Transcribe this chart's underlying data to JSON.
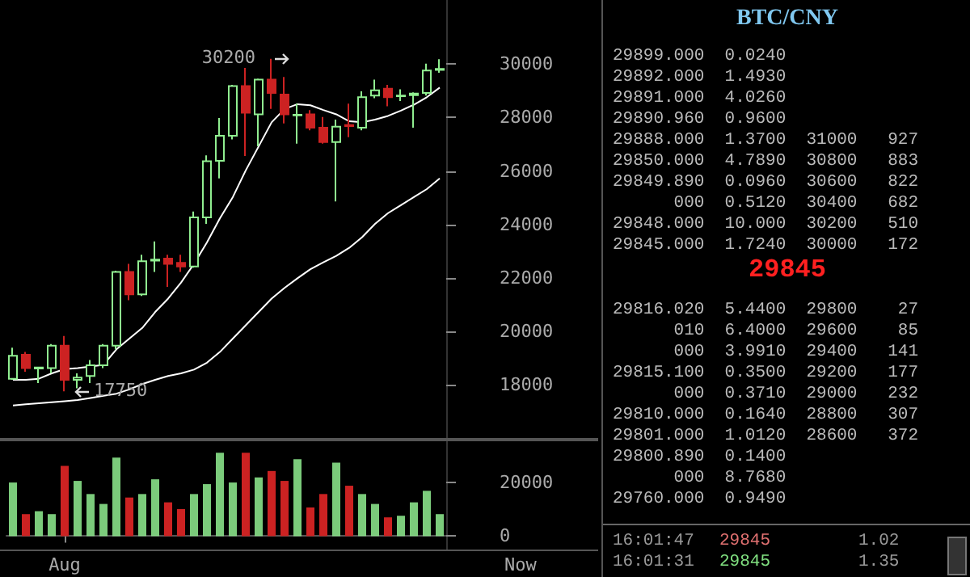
{
  "chart_data": [
    {
      "type": "candlestick",
      "categories": [
        null,
        null,
        null,
        null,
        null,
        null,
        null,
        null,
        null,
        null,
        null,
        null,
        null,
        null,
        null,
        null,
        null,
        null,
        null,
        null,
        null,
        null,
        null,
        null,
        null,
        null,
        null,
        null,
        null,
        null,
        null,
        null,
        null,
        null
      ],
      "ohlc": [
        [
          18220,
          19380,
          18180,
          19080
        ],
        [
          19120,
          19220,
          18480,
          18620
        ],
        [
          18600,
          18660,
          18060,
          18640
        ],
        [
          18620,
          19520,
          18420,
          19460
        ],
        [
          19460,
          19820,
          17750,
          18180
        ],
        [
          18180,
          18420,
          17860,
          18260
        ],
        [
          18320,
          18920,
          18060,
          18720
        ],
        [
          18720,
          19520,
          18620,
          19460
        ],
        [
          19460,
          22260,
          19320,
          22220
        ],
        [
          22220,
          22520,
          21160,
          21380
        ],
        [
          21380,
          22860,
          21320,
          22620
        ],
        [
          22640,
          23360,
          22220,
          22680
        ],
        [
          22720,
          22860,
          21660,
          22520
        ],
        [
          22560,
          22860,
          22220,
          22420
        ],
        [
          22420,
          24480,
          22380,
          24260
        ],
        [
          24260,
          26580,
          24020,
          26360
        ],
        [
          26380,
          27980,
          25720,
          27320
        ],
        [
          27320,
          29220,
          27180,
          29180
        ],
        [
          29180,
          29860,
          26560,
          28180
        ],
        [
          28120,
          29460,
          26920,
          29420
        ],
        [
          29420,
          30200,
          28320,
          28920
        ],
        [
          28860,
          29520,
          27780,
          28120
        ],
        [
          28080,
          28520,
          27020,
          28100
        ],
        [
          28120,
          28280,
          27520,
          27620
        ],
        [
          27620,
          28020,
          27020,
          27080
        ],
        [
          27080,
          27920,
          24860,
          27660
        ],
        [
          27720,
          28520,
          27260,
          27680
        ],
        [
          27620,
          28980,
          27520,
          28760
        ],
        [
          28820,
          29420,
          28720,
          29020
        ],
        [
          29080,
          29220,
          28420,
          28760
        ],
        [
          28800,
          29060,
          28620,
          28820
        ],
        [
          28840,
          28940,
          27620,
          28900
        ],
        [
          28920,
          30020,
          28820,
          29760
        ],
        [
          29780,
          30180,
          29680,
          29820
        ]
      ],
      "colors": [
        "#90ee90",
        "#cc2222",
        "#90ee90",
        "#90ee90",
        "#cc2222",
        "#90ee90",
        "#90ee90",
        "#90ee90",
        "#90ee90",
        "#cc2222",
        "#90ee90",
        "#90ee90",
        "#cc2222",
        "#cc2222",
        "#90ee90",
        "#90ee90",
        "#90ee90",
        "#90ee90",
        "#cc2222",
        "#90ee90",
        "#cc2222",
        "#cc2222",
        "#90ee90",
        "#cc2222",
        "#cc2222",
        "#90ee90",
        "#cc2222",
        "#90ee90",
        "#90ee90",
        "#cc2222",
        "#90ee90",
        "#90ee90",
        "#90ee90",
        "#90ee90"
      ],
      "series": [
        {
          "type": "line",
          "color": "#ffffff",
          "values": [
            18180,
            18180,
            18220,
            18420,
            18580,
            18620,
            18680,
            18740,
            19320,
            19720,
            20120,
            20720,
            21220,
            21820,
            22520,
            23320,
            24220,
            25020,
            26020,
            26920,
            27820,
            28320,
            28500,
            28460,
            28280,
            28120,
            27860,
            27820,
            27920,
            28060,
            28260,
            28480,
            28760,
            29120
          ]
        },
        {
          "type": "line",
          "color": "#ffffff",
          "values": [
            17220,
            17260,
            17300,
            17340,
            17380,
            17420,
            17500,
            17580,
            17660,
            17820,
            18020,
            18180,
            18320,
            18420,
            18560,
            18820,
            19220,
            19720,
            20220,
            20720,
            21220,
            21620,
            21980,
            22320,
            22580,
            22820,
            23120,
            23520,
            24020,
            24420,
            24720,
            25020,
            25320,
            25720
          ]
        }
      ],
      "ylim": [
        16000,
        32400
      ],
      "yticks": [
        18000,
        20000,
        22000,
        24000,
        26000,
        28000,
        30000
      ],
      "tick_labels": "y",
      "annotations": [
        "30200",
        "17750"
      ]
    },
    {
      "type": "bar",
      "categories": [
        null,
        null,
        null,
        null,
        "Aug",
        null,
        null,
        null,
        null,
        null,
        null,
        null,
        null,
        null,
        null,
        null,
        null,
        null,
        null,
        null,
        null,
        null,
        null,
        null,
        null,
        null,
        null,
        null,
        null,
        null,
        null,
        null,
        null,
        null
      ],
      "values": [
        20000,
        8200,
        9300,
        8200,
        26200,
        20600,
        15700,
        12000,
        29300,
        14400,
        15700,
        21200,
        12600,
        10100,
        15700,
        19400,
        31100,
        20000,
        31100,
        21900,
        24300,
        20600,
        28700,
        10700,
        15700,
        27400,
        18800,
        15700,
        12000,
        7000,
        7600,
        12600,
        16900,
        8200
      ],
      "colors": [
        "#90ee90",
        "#cc2222",
        "#90ee90",
        "#90ee90",
        "#cc2222",
        "#90ee90",
        "#90ee90",
        "#90ee90",
        "#90ee90",
        "#cc2222",
        "#90ee90",
        "#90ee90",
        "#cc2222",
        "#cc2222",
        "#90ee90",
        "#90ee90",
        "#90ee90",
        "#90ee90",
        "#cc2222",
        "#90ee90",
        "#cc2222",
        "#cc2222",
        "#90ee90",
        "#cc2222",
        "#cc2222",
        "#90ee90",
        "#cc2222",
        "#90ee90",
        "#90ee90",
        "#cc2222",
        "#90ee90",
        "#90ee90",
        "#90ee90",
        "#90ee90"
      ],
      "ylim": [
        -5000,
        36000
      ],
      "yticks": [
        0,
        20000
      ],
      "annotations": [
        "Now"
      ]
    },
    {
      "type": "other",
      "title": "BTC/CNY",
      "annotations": [
        "29899.000  0.0240",
        "29892.000  1.4930",
        "29891.000  4.0260",
        "29890.960  0.9600",
        "29888.000  1.3700  31000   927",
        "29850.000  4.7890  30800   883",
        "29849.890  0.0960  30600   822",
        "      000  0.5120  30400   682",
        "29848.000  10.000  30200   510",
        "29845.000  1.7240  30000   172",
        "29845",
        "29816.020  5.4400  29800    27",
        "      010  6.4000  29600    85",
        "      000  3.9910  29400   141",
        "29815.100  0.3500  29200   177",
        "      000  0.3710  29000   232",
        "29810.000  0.1640  28800   307",
        "29801.000  1.0120  28600   372",
        "29800.890  0.1400",
        "      000  8.7680",
        "29760.000  0.9490",
        "16:01:47",
        "29845",
        "1.02",
        "16:01:31",
        "29845",
        "1.35"
      ]
    }
  ]
}
